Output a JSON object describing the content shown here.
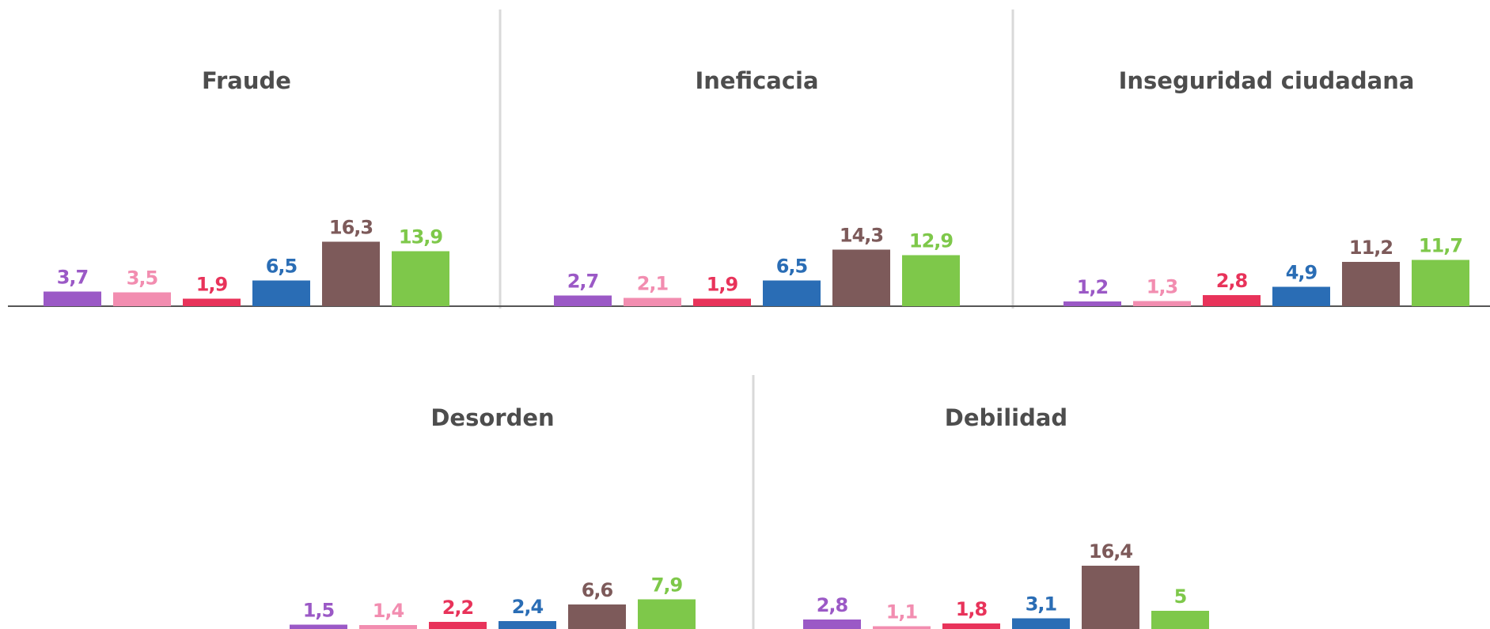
{
  "chart_data": [
    {
      "type": "bar",
      "title": "Fraude",
      "values": [
        3.7,
        3.5,
        1.9,
        6.5,
        16.3,
        13.9
      ],
      "value_labels": [
        "3,7",
        "3,5",
        "1,9",
        "6,5",
        "16,3",
        "13,9"
      ],
      "colors": [
        "#9b59c6",
        "#f28db0",
        "#e8335a",
        "#2a6db5",
        "#7d5a5a",
        "#7ec84a"
      ],
      "ylim": [
        0,
        20
      ]
    },
    {
      "type": "bar",
      "title": "Ineficacia",
      "values": [
        2.7,
        2.1,
        1.9,
        6.5,
        14.3,
        12.9
      ],
      "value_labels": [
        "2,7",
        "2,1",
        "1,9",
        "6,5",
        "14,3",
        "12,9"
      ],
      "colors": [
        "#9b59c6",
        "#f28db0",
        "#e8335a",
        "#2a6db5",
        "#7d5a5a",
        "#7ec84a"
      ],
      "ylim": [
        0,
        20
      ]
    },
    {
      "type": "bar",
      "title": "Inseguridad ciudadana",
      "values": [
        1.2,
        1.3,
        2.8,
        4.9,
        11.2,
        11.7
      ],
      "value_labels": [
        "1,2",
        "1,3",
        "2,8",
        "4,9",
        "11,2",
        "11,7"
      ],
      "colors": [
        "#9b59c6",
        "#f28db0",
        "#e8335a",
        "#2a6db5",
        "#7d5a5a",
        "#7ec84a"
      ],
      "ylim": [
        0,
        20
      ]
    },
    {
      "type": "bar",
      "title": "Desorden",
      "values": [
        1.5,
        1.4,
        2.2,
        2.4,
        6.6,
        7.9
      ],
      "value_labels": [
        "1,5",
        "1,4",
        "2,2",
        "2,4",
        "6,6",
        "7,9"
      ],
      "colors": [
        "#9b59c6",
        "#f28db0",
        "#e8335a",
        "#2a6db5",
        "#7d5a5a",
        "#7ec84a"
      ],
      "ylim": [
        0,
        20
      ]
    },
    {
      "type": "bar",
      "title": "Debilidad",
      "values": [
        2.8,
        1.1,
        1.8,
        3.1,
        16.4,
        5
      ],
      "value_labels": [
        "2,8",
        "1,1",
        "1,8",
        "3,1",
        "16,4",
        "5"
      ],
      "colors": [
        "#9b59c6",
        "#f28db0",
        "#e8335a",
        "#2a6db5",
        "#7d5a5a",
        "#7ec84a"
      ],
      "ylim": [
        0,
        20
      ]
    }
  ]
}
